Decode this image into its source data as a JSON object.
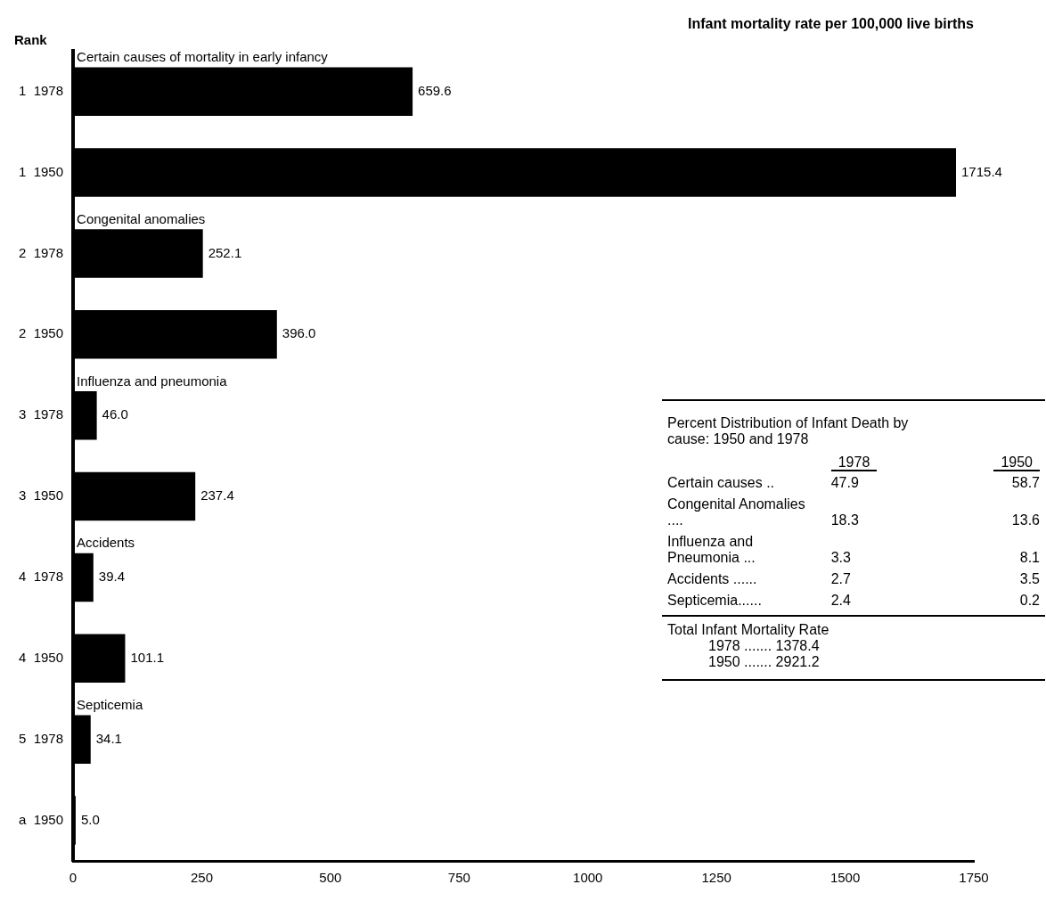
{
  "chart_data": [
    {
      "type": "bar",
      "orientation": "horizontal",
      "title": "Infant mortality rate per 100,000 live births",
      "ylabel": "Rank",
      "categories": [
        "1  1978",
        "1  1950",
        "2  1978",
        "2  1950",
        "3  1978",
        "3  1950",
        "4  1978",
        "4  1950",
        "5  1978",
        "a  1950"
      ],
      "values": [
        659.6,
        1715.4,
        252.1,
        396.0,
        46.0,
        237.4,
        39.4,
        101.1,
        34.1,
        5.0
      ],
      "value_labels": [
        "659.6",
        "1715.4",
        "252.1",
        "396.0",
        "46.0",
        "237.4",
        "39.4",
        "101.1",
        "34.1",
        "5.0"
      ],
      "color": "#000000",
      "xlim": [
        0,
        1750
      ],
      "xticks": [
        0,
        250,
        500,
        750,
        1000,
        1250,
        1500,
        1750
      ],
      "grid": false,
      "legend": false,
      "annotations": [
        "Certain causes of mortality in early infancy",
        "Congenital anomalies",
        "Influenza and pneumonia",
        "Accidents",
        "Septicemia"
      ]
    },
    {
      "type": "other",
      "title": "Percent Distribution of Infant Death by cause: 1950 and 1978",
      "categories": [
        "Certain causes ..",
        "Congenital Anomalies ....",
        "Influenza and Pneumonia ...",
        "Accidents ......",
        "Septicemia......"
      ],
      "series": [
        {
          "name": "1978",
          "values": [
            47.9,
            18.3,
            3.3,
            2.7,
            2.4
          ]
        },
        {
          "name": "1950",
          "values": [
            58.7,
            13.6,
            8.1,
            3.5,
            0.2
          ]
        }
      ],
      "data_labels": true,
      "annotations": [
        "Total Infant Mortality Rate",
        "1978 ....... 1378.4",
        "1950 ....... 2921.2"
      ]
    }
  ]
}
